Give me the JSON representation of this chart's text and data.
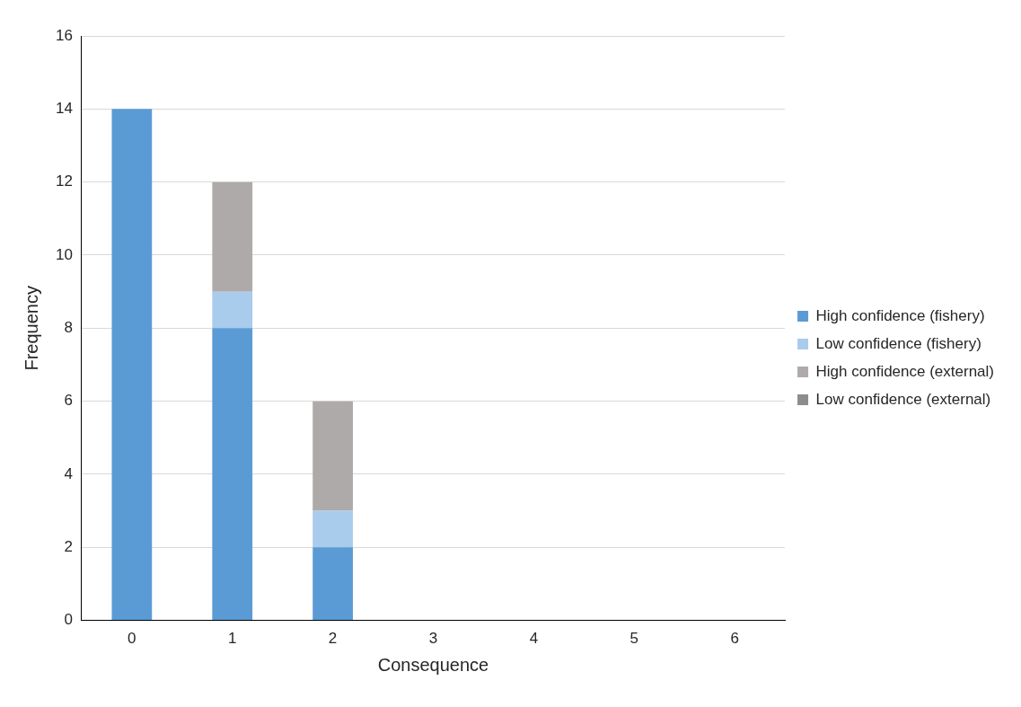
{
  "chart_data": {
    "type": "bar",
    "stacked": true,
    "xlabel": "Consequence",
    "ylabel": "Frequency",
    "categories": [
      "0",
      "1",
      "2",
      "3",
      "4",
      "5",
      "6"
    ],
    "series": [
      {
        "name": "High confidence (fishery)",
        "color": "#5b9bd5",
        "values": [
          14,
          8,
          2,
          0,
          0,
          0,
          0
        ]
      },
      {
        "name": "Low confidence (fishery)",
        "color": "#a9cbec",
        "values": [
          0,
          1,
          1,
          0,
          0,
          0,
          0
        ]
      },
      {
        "name": "High confidence (external)",
        "color": "#aeaaaa",
        "values": [
          0,
          3,
          3,
          0,
          0,
          0,
          0
        ]
      },
      {
        "name": "Low confidence (external)",
        "color": "#8c8c8c",
        "values": [
          0,
          0,
          0,
          0,
          0,
          0,
          0
        ]
      }
    ],
    "ylim": [
      0,
      16
    ],
    "yticks": [
      0,
      2,
      4,
      6,
      8,
      10,
      12,
      14,
      16
    ],
    "grid": "y",
    "legend": "right"
  }
}
